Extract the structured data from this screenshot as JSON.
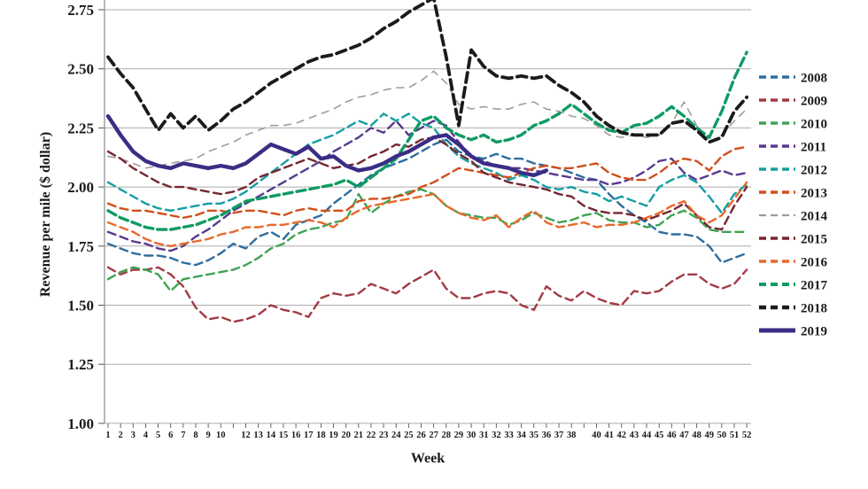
{
  "figure": {
    "background": "#ffffff",
    "legend_position": "right"
  },
  "chart_data": {
    "type": "line",
    "title": "",
    "xlabel": "Week",
    "ylabel": "Revenue per mile ($ dollar)",
    "ylim": [
      1.0,
      2.8
    ],
    "grid": "horizontal",
    "legend_position": "right",
    "yticks": [
      "2.75",
      "2.50",
      "2.25",
      "2.00",
      "1.75",
      "1.50",
      "1.25",
      "1.00"
    ],
    "ytick_values": [
      2.75,
      2.5,
      2.25,
      2.0,
      1.75,
      1.5,
      1.25,
      1.0
    ],
    "x_tick_labels": [
      "1",
      "2",
      "3",
      "4",
      "5",
      "6",
      "7",
      "8",
      "9",
      "10",
      "",
      "12",
      "13",
      "14",
      "15",
      "16",
      "17",
      "18",
      "19",
      "20",
      "21",
      "22",
      "23",
      "24",
      "25",
      "26",
      "27",
      "28",
      "29",
      "30",
      "31",
      "32",
      "33",
      "34",
      "35",
      "36",
      "37",
      "38",
      "",
      "40",
      "41",
      "42",
      "43",
      "44",
      "45",
      "46",
      "47",
      "48",
      "49",
      "50",
      "51",
      "52"
    ],
    "series": [
      {
        "name": "2008",
        "color": "#2e6d9e",
        "line_style": "dashed",
        "values": [
          1.76,
          1.74,
          1.72,
          1.71,
          1.71,
          1.7,
          1.68,
          1.67,
          1.69,
          1.72,
          1.76,
          1.74,
          1.79,
          1.81,
          1.78,
          1.84,
          1.86,
          1.88,
          1.93,
          1.97,
          2.01,
          2.05,
          2.08,
          2.1,
          2.12,
          2.15,
          2.18,
          2.2,
          2.15,
          2.13,
          2.12,
          2.14,
          2.12,
          2.12,
          2.1,
          2.09,
          2.08,
          2.06,
          2.04,
          2.03,
          1.97,
          1.92,
          1.88,
          1.85,
          1.81,
          1.8,
          1.8,
          1.79,
          1.75,
          1.68,
          1.7,
          1.72
        ]
      },
      {
        "name": "2009",
        "color": "#a23a44",
        "line_style": "dashed",
        "values": [
          1.66,
          1.63,
          1.65,
          1.65,
          1.66,
          1.63,
          1.58,
          1.49,
          1.44,
          1.45,
          1.43,
          1.44,
          1.46,
          1.5,
          1.48,
          1.47,
          1.45,
          1.53,
          1.55,
          1.54,
          1.55,
          1.59,
          1.57,
          1.55,
          1.59,
          1.62,
          1.65,
          1.57,
          1.53,
          1.53,
          1.55,
          1.56,
          1.55,
          1.5,
          1.48,
          1.58,
          1.54,
          1.52,
          1.56,
          1.53,
          1.51,
          1.5,
          1.56,
          1.55,
          1.56,
          1.6,
          1.63,
          1.63,
          1.59,
          1.57,
          1.59,
          1.65
        ]
      },
      {
        "name": "2010",
        "color": "#3da353",
        "line_style": "dashed",
        "values": [
          1.61,
          1.64,
          1.66,
          1.65,
          1.63,
          1.56,
          1.61,
          1.62,
          1.63,
          1.64,
          1.65,
          1.67,
          1.7,
          1.74,
          1.76,
          1.8,
          1.82,
          1.83,
          1.85,
          1.86,
          1.97,
          1.89,
          1.93,
          1.96,
          1.98,
          1.99,
          1.97,
          1.92,
          1.89,
          1.88,
          1.87,
          1.87,
          1.84,
          1.86,
          1.89,
          1.87,
          1.85,
          1.86,
          1.88,
          1.89,
          1.86,
          1.85,
          1.85,
          1.83,
          1.84,
          1.88,
          1.9,
          1.87,
          1.82,
          1.81,
          1.81,
          1.81
        ]
      },
      {
        "name": "2011",
        "color": "#583a8d",
        "line_style": "dashed",
        "values": [
          1.81,
          1.79,
          1.77,
          1.76,
          1.74,
          1.73,
          1.75,
          1.79,
          1.82,
          1.86,
          1.9,
          1.93,
          1.96,
          1.99,
          2.02,
          2.05,
          2.08,
          2.11,
          2.15,
          2.18,
          2.21,
          2.25,
          2.23,
          2.28,
          2.22,
          2.25,
          2.28,
          2.26,
          2.19,
          2.13,
          2.11,
          2.09,
          2.08,
          2.08,
          2.07,
          2.06,
          2.05,
          2.04,
          2.03,
          2.03,
          2.01,
          2.02,
          2.04,
          2.07,
          2.11,
          2.12,
          2.06,
          2.03,
          2.05,
          2.07,
          2.05,
          2.06
        ]
      },
      {
        "name": "2012",
        "color": "#149fa4",
        "line_style": "dashed",
        "values": [
          2.02,
          1.99,
          1.96,
          1.93,
          1.91,
          1.9,
          1.91,
          1.92,
          1.93,
          1.93,
          1.95,
          1.98,
          2.02,
          2.06,
          2.1,
          2.14,
          2.18,
          2.2,
          2.22,
          2.25,
          2.28,
          2.26,
          2.31,
          2.28,
          2.31,
          2.27,
          2.25,
          2.18,
          2.13,
          2.1,
          2.08,
          2.06,
          2.03,
          2.05,
          2.03,
          2.0,
          1.99,
          2.0,
          1.98,
          1.97,
          1.94,
          1.96,
          1.94,
          1.92,
          2.0,
          2.03,
          2.05,
          2.02,
          1.96,
          1.89,
          1.97,
          2.01
        ]
      },
      {
        "name": "2013",
        "color": "#d14f1c",
        "line_style": "dashed",
        "values": [
          1.93,
          1.91,
          1.9,
          1.9,
          1.89,
          1.88,
          1.87,
          1.88,
          1.9,
          1.9,
          1.89,
          1.9,
          1.9,
          1.89,
          1.88,
          1.9,
          1.91,
          1.9,
          1.9,
          1.9,
          1.94,
          1.95,
          1.95,
          1.96,
          1.97,
          2.0,
          2.02,
          2.05,
          2.08,
          2.07,
          2.06,
          2.05,
          2.04,
          2.06,
          2.08,
          2.09,
          2.08,
          2.08,
          2.09,
          2.1,
          2.06,
          2.04,
          2.03,
          2.03,
          2.06,
          2.1,
          2.12,
          2.11,
          2.07,
          2.13,
          2.16,
          2.17
        ]
      },
      {
        "name": "2014",
        "color": "#9c9c9c",
        "line_style": "dashed",
        "values": [
          2.13,
          2.12,
          2.1,
          2.08,
          2.09,
          2.1,
          2.11,
          2.12,
          2.15,
          2.17,
          2.19,
          2.22,
          2.24,
          2.26,
          2.26,
          2.27,
          2.29,
          2.31,
          2.33,
          2.36,
          2.38,
          2.39,
          2.41,
          2.42,
          2.42,
          2.45,
          2.49,
          2.44,
          2.35,
          2.33,
          2.34,
          2.33,
          2.33,
          2.35,
          2.36,
          2.33,
          2.32,
          2.3,
          2.29,
          2.26,
          2.22,
          2.21,
          2.22,
          2.21,
          2.22,
          2.27,
          2.36,
          2.26,
          2.19,
          2.22,
          2.28,
          2.33
        ]
      },
      {
        "name": "2015",
        "color": "#752731",
        "line_style": "dashed",
        "values": [
          2.15,
          2.12,
          2.08,
          2.05,
          2.02,
          2.0,
          2.0,
          1.99,
          1.98,
          1.97,
          1.98,
          2.0,
          2.04,
          2.06,
          2.08,
          2.1,
          2.12,
          2.1,
          2.08,
          2.09,
          2.1,
          2.13,
          2.15,
          2.18,
          2.17,
          2.2,
          2.21,
          2.18,
          2.14,
          2.11,
          2.06,
          2.04,
          2.02,
          2.01,
          2.0,
          1.99,
          1.97,
          1.96,
          1.92,
          1.9,
          1.89,
          1.89,
          1.88,
          1.86,
          1.88,
          1.9,
          1.93,
          1.88,
          1.83,
          1.82,
          1.92,
          2.0
        ]
      },
      {
        "name": "2016",
        "color": "#e8692a",
        "line_style": "dashed",
        "values": [
          1.85,
          1.83,
          1.81,
          1.78,
          1.76,
          1.75,
          1.76,
          1.77,
          1.78,
          1.8,
          1.81,
          1.83,
          1.83,
          1.84,
          1.84,
          1.85,
          1.86,
          1.85,
          1.83,
          1.87,
          1.9,
          1.92,
          1.93,
          1.94,
          1.95,
          1.96,
          1.97,
          1.92,
          1.89,
          1.87,
          1.86,
          1.88,
          1.83,
          1.87,
          1.9,
          1.85,
          1.83,
          1.84,
          1.85,
          1.83,
          1.84,
          1.84,
          1.85,
          1.87,
          1.89,
          1.92,
          1.94,
          1.88,
          1.85,
          1.88,
          1.95,
          2.02
        ]
      },
      {
        "name": "2017",
        "color": "#0f9b62",
        "line_style": "dashed",
        "values": [
          1.9,
          1.87,
          1.85,
          1.83,
          1.82,
          1.82,
          1.83,
          1.84,
          1.86,
          1.88,
          1.91,
          1.94,
          1.95,
          1.96,
          1.97,
          1.98,
          1.99,
          2.0,
          2.01,
          2.03,
          2.0,
          2.04,
          2.08,
          2.12,
          2.2,
          2.28,
          2.3,
          2.25,
          2.22,
          2.2,
          2.22,
          2.19,
          2.2,
          2.22,
          2.26,
          2.28,
          2.31,
          2.35,
          2.31,
          2.27,
          2.24,
          2.23,
          2.26,
          2.27,
          2.3,
          2.34,
          2.3,
          2.25,
          2.21,
          2.32,
          2.46,
          2.57
        ]
      },
      {
        "name": "2018",
        "color": "#1b1b1b",
        "line_style": "dashed",
        "values": [
          2.55,
          2.48,
          2.42,
          2.33,
          2.24,
          2.31,
          2.25,
          2.3,
          2.24,
          2.28,
          2.33,
          2.36,
          2.4,
          2.44,
          2.47,
          2.5,
          2.53,
          2.55,
          2.56,
          2.58,
          2.6,
          2.63,
          2.67,
          2.7,
          2.74,
          2.77,
          2.8,
          2.55,
          2.26,
          2.58,
          2.51,
          2.47,
          2.46,
          2.47,
          2.46,
          2.47,
          2.43,
          2.4,
          2.36,
          2.3,
          2.26,
          2.23,
          2.22,
          2.22,
          2.22,
          2.27,
          2.28,
          2.24,
          2.19,
          2.21,
          2.32,
          2.38
        ]
      },
      {
        "name": "2019",
        "color": "#3a2d85",
        "line_style": "solid",
        "values": [
          2.3,
          2.22,
          2.15,
          2.11,
          2.09,
          2.08,
          2.1,
          2.09,
          2.08,
          2.09,
          2.08,
          2.1,
          2.14,
          2.18,
          2.16,
          2.14,
          2.17,
          2.12,
          2.13,
          2.09,
          2.07,
          2.08,
          2.1,
          2.13,
          2.15,
          2.18,
          2.21,
          2.22,
          2.18,
          2.13,
          2.1,
          2.09,
          2.08,
          2.06,
          2.05,
          2.07
        ]
      }
    ]
  }
}
